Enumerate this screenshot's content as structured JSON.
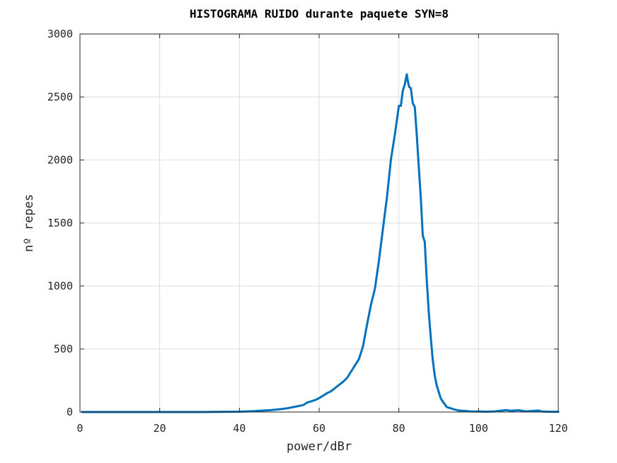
{
  "chart_data": {
    "type": "line",
    "title": "HISTOGRAMA RUIDO durante paquete SYN=8",
    "xlabel": "power/dBr",
    "ylabel": "nº repes",
    "xlim": [
      0,
      120
    ],
    "ylim": [
      0,
      3000
    ],
    "xticks": [
      0,
      20,
      40,
      60,
      80,
      100,
      120
    ],
    "yticks": [
      0,
      500,
      1000,
      1500,
      2000,
      2500,
      3000
    ],
    "grid": true,
    "series": [
      {
        "color": "#0072BD",
        "x": [
          0.5,
          5,
          10,
          15,
          20,
          25,
          30,
          35,
          40,
          42,
          44,
          46,
          48,
          50,
          52,
          54,
          56,
          57,
          58,
          59,
          60,
          61,
          62,
          63,
          64,
          65,
          66,
          67,
          68,
          69,
          70,
          71,
          72,
          73,
          74,
          75,
          76,
          77,
          78,
          79,
          80,
          80.5,
          81,
          81.5,
          82,
          82.3,
          82.6,
          83,
          83.5,
          84,
          84.5,
          85,
          85.5,
          86,
          86.5,
          87,
          87.5,
          88,
          88.5,
          89,
          89.5,
          90,
          90.5,
          91,
          92,
          93,
          94,
          95,
          96,
          97,
          98,
          100,
          102,
          104,
          106,
          107,
          108,
          110,
          112,
          114,
          115,
          116,
          118,
          120
        ],
        "y": [
          0,
          0,
          0,
          0,
          0,
          0,
          0,
          1,
          3,
          5,
          8,
          12,
          15,
          22,
          30,
          42,
          55,
          75,
          85,
          95,
          110,
          130,
          150,
          165,
          190,
          215,
          240,
          270,
          320,
          370,
          420,
          520,
          690,
          850,
          980,
          1200,
          1450,
          1700,
          2000,
          2200,
          2430,
          2430,
          2550,
          2600,
          2680,
          2620,
          2580,
          2570,
          2450,
          2420,
          2200,
          1950,
          1700,
          1400,
          1350,
          1050,
          800,
          600,
          420,
          290,
          210,
          160,
          110,
          85,
          40,
          30,
          20,
          12,
          10,
          8,
          5,
          4,
          3,
          5,
          12,
          15,
          10,
          14,
          5,
          10,
          12,
          4,
          2,
          2
        ]
      }
    ]
  }
}
